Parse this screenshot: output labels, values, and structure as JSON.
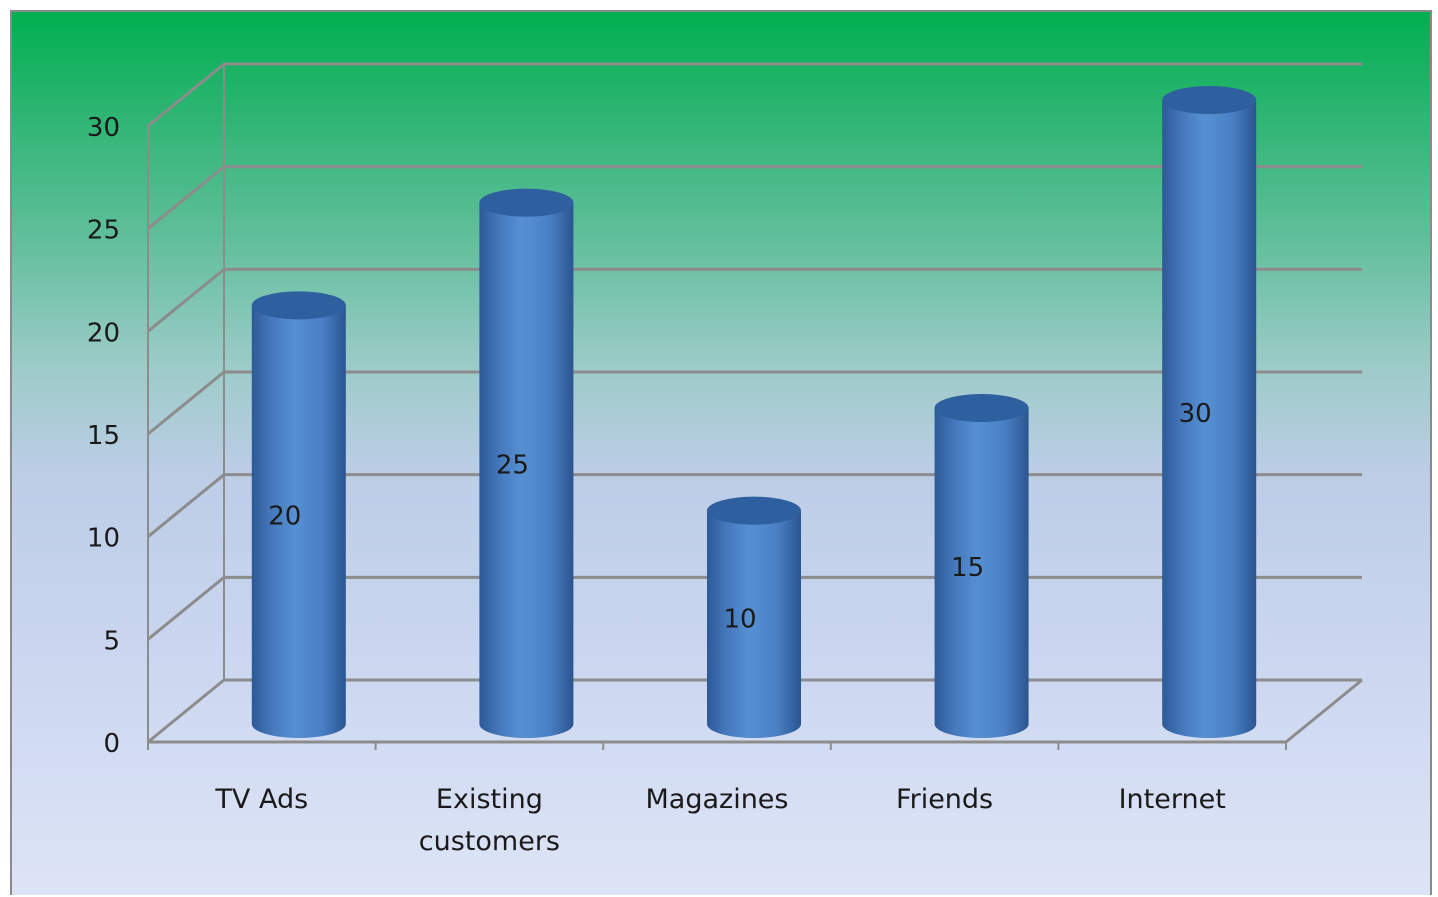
{
  "chart_data": {
    "type": "bar",
    "style": "3d-cylinder",
    "categories": [
      "TV Ads",
      "Existing customers",
      "Magazines",
      "Friends",
      "Internet"
    ],
    "category_lines": [
      [
        "TV Ads"
      ],
      [
        "Existing",
        "customers"
      ],
      [
        "Magazines"
      ],
      [
        "Friends"
      ],
      [
        "Internet"
      ]
    ],
    "values": [
      20,
      25,
      10,
      15,
      30
    ],
    "data_labels": [
      "20",
      "25",
      "10",
      "15",
      "30"
    ],
    "ylim": [
      0,
      30
    ],
    "y_ticks": [
      0,
      5,
      10,
      15,
      20,
      25,
      30
    ],
    "y_tick_labels": [
      "0",
      "5",
      "10",
      "15",
      "20",
      "25",
      "30"
    ],
    "title": "",
    "xlabel": "",
    "ylabel": "",
    "grid": true,
    "legend": "none",
    "colors": {
      "bar": "#4a7fc4",
      "bar_dark": "#2e5f9e",
      "grid": "#8c8c8c",
      "background_top": "#00b050",
      "background_bottom": "#dde4f6"
    }
  }
}
